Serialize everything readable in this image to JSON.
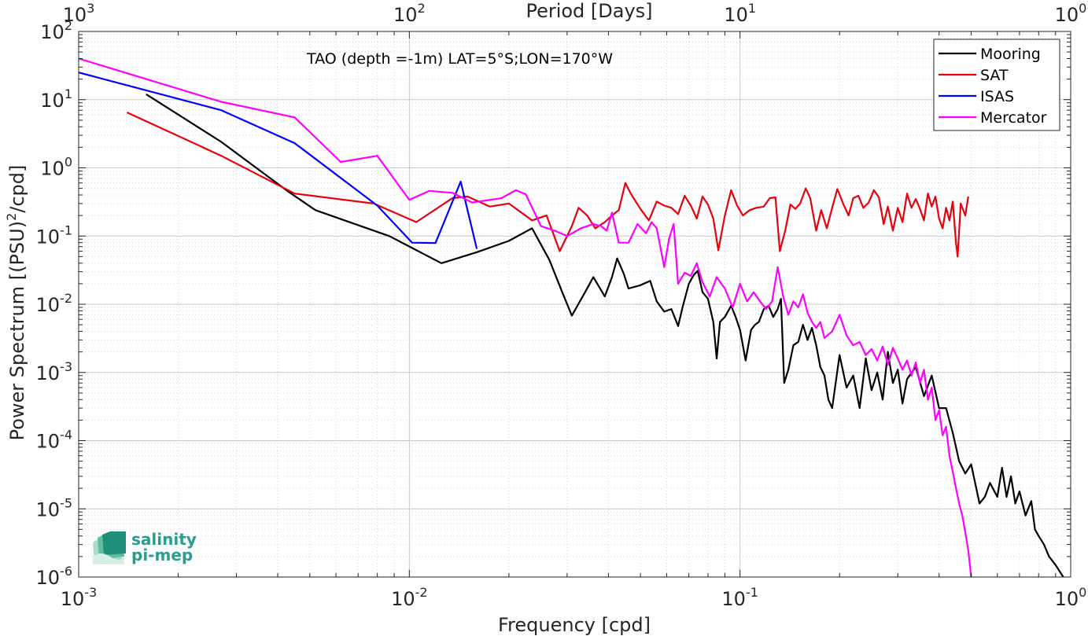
{
  "chart_data": {
    "type": "line",
    "title": "TAO (depth =-1m) LAT=5°S;LON=170°W",
    "xlabel": "Frequency [cpd]",
    "ylabel_parts": [
      "Power Spectrum [(PSU)",
      "2",
      "/cpd]"
    ],
    "x2label": "Period [Days]",
    "x_scale": "log",
    "y_scale": "log",
    "xlim": [
      0.001,
      1
    ],
    "ylim": [
      1e-06,
      100
    ],
    "grid": true,
    "legend_position": "top-right",
    "x_ticks": [
      {
        "base": "10",
        "exp": "-3",
        "value": 0.001
      },
      {
        "base": "10",
        "exp": "-2",
        "value": 0.01
      },
      {
        "base": "10",
        "exp": "-1",
        "value": 0.1
      },
      {
        "base": "10",
        "exp": "0",
        "value": 1
      }
    ],
    "x2_ticks": [
      {
        "base": "10",
        "exp": "3",
        "value": 0.001
      },
      {
        "base": "10",
        "exp": "2",
        "value": 0.01
      },
      {
        "base": "10",
        "exp": "1",
        "value": 0.1
      },
      {
        "base": "10",
        "exp": "0",
        "value": 1
      }
    ],
    "y_ticks": [
      {
        "base": "10",
        "exp": "2",
        "value": 100
      },
      {
        "base": "10",
        "exp": "1",
        "value": 10
      },
      {
        "base": "10",
        "exp": "0",
        "value": 1
      },
      {
        "base": "10",
        "exp": "-1",
        "value": 0.1
      },
      {
        "base": "10",
        "exp": "-2",
        "value": 0.01
      },
      {
        "base": "10",
        "exp": "-3",
        "value": 0.001
      },
      {
        "base": "10",
        "exp": "-4",
        "value": 0.0001
      },
      {
        "base": "10",
        "exp": "-5",
        "value": 1e-05
      },
      {
        "base": "10",
        "exp": "-6",
        "value": 1e-06
      }
    ],
    "series": [
      {
        "name": "Mooring",
        "color": "#000000",
        "points": [
          [
            0.0016,
            12
          ],
          [
            0.0027,
            2.4
          ],
          [
            0.0043,
            0.45
          ],
          [
            0.0052,
            0.24
          ],
          [
            0.0087,
            0.1
          ],
          [
            0.0125,
            0.04
          ],
          [
            0.016,
            0.058
          ],
          [
            0.02,
            0.085
          ],
          [
            0.0235,
            0.13
          ],
          [
            0.0265,
            0.045
          ],
          [
            0.029,
            0.015
          ],
          [
            0.031,
            0.0068
          ],
          [
            0.034,
            0.015
          ],
          [
            0.036,
            0.025
          ],
          [
            0.039,
            0.013
          ],
          [
            0.041,
            0.025
          ],
          [
            0.0425,
            0.047
          ],
          [
            0.0445,
            0.028
          ],
          [
            0.046,
            0.017
          ],
          [
            0.05,
            0.019
          ],
          [
            0.0535,
            0.022
          ],
          [
            0.056,
            0.011
          ],
          [
            0.059,
            0.0078
          ],
          [
            0.062,
            0.0085
          ],
          [
            0.065,
            0.0048
          ],
          [
            0.067,
            0.009
          ],
          [
            0.07,
            0.02
          ],
          [
            0.0725,
            0.027
          ],
          [
            0.0745,
            0.031
          ],
          [
            0.077,
            0.015
          ],
          [
            0.08,
            0.012
          ],
          [
            0.083,
            0.0055
          ],
          [
            0.085,
            0.0016
          ],
          [
            0.087,
            0.0055
          ],
          [
            0.09,
            0.0065
          ],
          [
            0.094,
            0.0095
          ],
          [
            0.097,
            0.0065
          ],
          [
            0.1,
            0.0042
          ],
          [
            0.104,
            0.0015
          ],
          [
            0.108,
            0.0042
          ],
          [
            0.111,
            0.005
          ],
          [
            0.114,
            0.0055
          ],
          [
            0.118,
            0.0085
          ],
          [
            0.122,
            0.0095
          ],
          [
            0.126,
            0.0065
          ],
          [
            0.13,
            0.0085
          ],
          [
            0.133,
            0.012
          ],
          [
            0.136,
            0.0007
          ],
          [
            0.14,
            0.0011
          ],
          [
            0.145,
            0.0025
          ],
          [
            0.15,
            0.0028
          ],
          [
            0.155,
            0.005
          ],
          [
            0.16,
            0.003
          ],
          [
            0.165,
            0.0045
          ],
          [
            0.17,
            0.0025
          ],
          [
            0.175,
            0.0012
          ],
          [
            0.18,
            0.0009
          ],
          [
            0.185,
            0.0004
          ],
          [
            0.19,
            0.0003
          ],
          [
            0.2,
            0.0018
          ],
          [
            0.21,
            0.0006
          ],
          [
            0.22,
            0.0009
          ],
          [
            0.23,
            0.0003
          ],
          [
            0.24,
            0.0016
          ],
          [
            0.25,
            0.00055
          ],
          [
            0.26,
            0.001
          ],
          [
            0.27,
            0.0004
          ],
          [
            0.28,
            0.002
          ],
          [
            0.29,
            0.0007
          ],
          [
            0.3,
            0.0011
          ],
          [
            0.31,
            0.00035
          ],
          [
            0.32,
            0.0008
          ],
          [
            0.34,
            0.0012
          ],
          [
            0.36,
            0.00045
          ],
          [
            0.38,
            0.0009
          ],
          [
            0.4,
            0.0003
          ],
          [
            0.42,
            0.0003
          ],
          [
            0.44,
            0.00013
          ],
          [
            0.46,
            5e-05
          ],
          [
            0.48,
            3.3e-05
          ],
          [
            0.5,
            4.5e-05
          ],
          [
            0.53,
            1.2e-05
          ],
          [
            0.55,
            1.5e-05
          ],
          [
            0.57,
            2.4e-05
          ],
          [
            0.6,
            1.5e-05
          ],
          [
            0.62,
            4e-05
          ],
          [
            0.64,
            1.5e-05
          ],
          [
            0.66,
            3e-05
          ],
          [
            0.68,
            1.2e-05
          ],
          [
            0.7,
            1.8e-05
          ],
          [
            0.73,
            8e-06
          ],
          [
            0.76,
            1.3e-05
          ],
          [
            0.78,
            5e-06
          ],
          [
            0.8,
            4e-06
          ],
          [
            0.83,
            3e-06
          ],
          [
            0.86,
            2e-06
          ],
          [
            0.9,
            1.5e-06
          ],
          [
            0.95,
            1e-06
          ]
        ]
      },
      {
        "name": "SAT",
        "color": "#e8000b",
        "points": [
          [
            0.0014,
            6.5
          ],
          [
            0.0027,
            1.5
          ],
          [
            0.0045,
            0.42
          ],
          [
            0.0078,
            0.3
          ],
          [
            0.0105,
            0.16
          ],
          [
            0.0135,
            0.36
          ],
          [
            0.015,
            0.38
          ],
          [
            0.0175,
            0.27
          ],
          [
            0.02,
            0.3
          ],
          [
            0.0235,
            0.17
          ],
          [
            0.026,
            0.2
          ],
          [
            0.0285,
            0.06
          ],
          [
            0.031,
            0.14
          ],
          [
            0.0325,
            0.26
          ],
          [
            0.0345,
            0.2
          ],
          [
            0.0365,
            0.13
          ],
          [
            0.039,
            0.16
          ],
          [
            0.041,
            0.2
          ],
          [
            0.043,
            0.24
          ],
          [
            0.045,
            0.6
          ],
          [
            0.047,
            0.4
          ],
          [
            0.05,
            0.25
          ],
          [
            0.053,
            0.17
          ],
          [
            0.056,
            0.32
          ],
          [
            0.059,
            0.28
          ],
          [
            0.062,
            0.26
          ],
          [
            0.065,
            0.21
          ],
          [
            0.068,
            0.39
          ],
          [
            0.071,
            0.28
          ],
          [
            0.074,
            0.18
          ],
          [
            0.077,
            0.38
          ],
          [
            0.08,
            0.29
          ],
          [
            0.083,
            0.18
          ],
          [
            0.086,
            0.062
          ],
          [
            0.09,
            0.2
          ],
          [
            0.094,
            0.47
          ],
          [
            0.098,
            0.28
          ],
          [
            0.102,
            0.2
          ],
          [
            0.107,
            0.24
          ],
          [
            0.112,
            0.26
          ],
          [
            0.118,
            0.27
          ],
          [
            0.123,
            0.36
          ],
          [
            0.128,
            0.37
          ],
          [
            0.132,
            0.06
          ],
          [
            0.137,
            0.12
          ],
          [
            0.142,
            0.29
          ],
          [
            0.147,
            0.25
          ],
          [
            0.152,
            0.3
          ],
          [
            0.158,
            0.5
          ],
          [
            0.163,
            0.36
          ],
          [
            0.17,
            0.12
          ],
          [
            0.176,
            0.24
          ],
          [
            0.183,
            0.13
          ],
          [
            0.19,
            0.26
          ],
          [
            0.197,
            0.49
          ],
          [
            0.205,
            0.3
          ],
          [
            0.213,
            0.2
          ],
          [
            0.22,
            0.36
          ],
          [
            0.228,
            0.39
          ],
          [
            0.236,
            0.26
          ],
          [
            0.245,
            0.31
          ],
          [
            0.254,
            0.47
          ],
          [
            0.263,
            0.37
          ],
          [
            0.272,
            0.15
          ],
          [
            0.28,
            0.27
          ],
          [
            0.29,
            0.12
          ],
          [
            0.3,
            0.26
          ],
          [
            0.31,
            0.16
          ],
          [
            0.32,
            0.42
          ],
          [
            0.33,
            0.26
          ],
          [
            0.34,
            0.35
          ],
          [
            0.35,
            0.25
          ],
          [
            0.36,
            0.17
          ],
          [
            0.37,
            0.42
          ],
          [
            0.38,
            0.27
          ],
          [
            0.39,
            0.38
          ],
          [
            0.4,
            0.18
          ],
          [
            0.41,
            0.13
          ],
          [
            0.42,
            0.26
          ],
          [
            0.43,
            0.17
          ],
          [
            0.44,
            0.32
          ],
          [
            0.45,
            0.08
          ],
          [
            0.455,
            0.05
          ],
          [
            0.465,
            0.3
          ],
          [
            0.48,
            0.2
          ],
          [
            0.49,
            0.38
          ]
        ]
      },
      {
        "name": "ISAS",
        "color": "#0000ff",
        "points": [
          [
            0.001,
            25
          ],
          [
            0.0027,
            7
          ],
          [
            0.0045,
            2.3
          ],
          [
            0.008,
            0.28
          ],
          [
            0.0102,
            0.08
          ],
          [
            0.012,
            0.079
          ],
          [
            0.0143,
            0.63
          ],
          [
            0.016,
            0.065
          ]
        ]
      },
      {
        "name": "Mercator",
        "color": "#ff00ff",
        "points": [
          [
            0.001,
            40
          ],
          [
            0.0027,
            9.3
          ],
          [
            0.0045,
            5.5
          ],
          [
            0.0062,
            1.22
          ],
          [
            0.008,
            1.5
          ],
          [
            0.01,
            0.34
          ],
          [
            0.0115,
            0.46
          ],
          [
            0.0135,
            0.43
          ],
          [
            0.0155,
            0.31
          ],
          [
            0.019,
            0.36
          ],
          [
            0.021,
            0.47
          ],
          [
            0.0225,
            0.41
          ],
          [
            0.025,
            0.14
          ],
          [
            0.0275,
            0.12
          ],
          [
            0.03,
            0.1
          ],
          [
            0.033,
            0.13
          ],
          [
            0.036,
            0.15
          ],
          [
            0.038,
            0.14
          ],
          [
            0.0395,
            0.12
          ],
          [
            0.041,
            0.22
          ],
          [
            0.043,
            0.08
          ],
          [
            0.046,
            0.08
          ],
          [
            0.049,
            0.15
          ],
          [
            0.052,
            0.11
          ],
          [
            0.054,
            0.16
          ],
          [
            0.056,
            0.13
          ],
          [
            0.059,
            0.035
          ],
          [
            0.061,
            0.09
          ],
          [
            0.063,
            0.15
          ],
          [
            0.065,
            0.02
          ],
          [
            0.068,
            0.029
          ],
          [
            0.071,
            0.026
          ],
          [
            0.074,
            0.04
          ],
          [
            0.077,
            0.021
          ],
          [
            0.081,
            0.013
          ],
          [
            0.085,
            0.025
          ],
          [
            0.09,
            0.017
          ],
          [
            0.095,
            0.009
          ],
          [
            0.1,
            0.02
          ],
          [
            0.105,
            0.011
          ],
          [
            0.11,
            0.015
          ],
          [
            0.115,
            0.011
          ],
          [
            0.12,
            0.0085
          ],
          [
            0.125,
            0.011
          ],
          [
            0.13,
            0.035
          ],
          [
            0.135,
            0.013
          ],
          [
            0.14,
            0.007
          ],
          [
            0.145,
            0.011
          ],
          [
            0.15,
            0.009
          ],
          [
            0.155,
            0.014
          ],
          [
            0.16,
            0.0075
          ],
          [
            0.165,
            0.0055
          ],
          [
            0.17,
            0.0045
          ],
          [
            0.175,
            0.0055
          ],
          [
            0.18,
            0.0032
          ],
          [
            0.19,
            0.004
          ],
          [
            0.2,
            0.007
          ],
          [
            0.21,
            0.0035
          ],
          [
            0.22,
            0.0025
          ],
          [
            0.23,
            0.0028
          ],
          [
            0.24,
            0.0018
          ],
          [
            0.25,
            0.0022
          ],
          [
            0.26,
            0.0015
          ],
          [
            0.27,
            0.0024
          ],
          [
            0.28,
            0.0013
          ],
          [
            0.29,
            0.0023
          ],
          [
            0.3,
            0.0016
          ],
          [
            0.31,
            0.0011
          ],
          [
            0.32,
            0.0015
          ],
          [
            0.33,
            0.0009
          ],
          [
            0.34,
            0.0014
          ],
          [
            0.35,
            0.0007
          ],
          [
            0.36,
            0.0011
          ],
          [
            0.37,
            0.0004
          ],
          [
            0.38,
            0.0006
          ],
          [
            0.39,
            0.0002
          ],
          [
            0.4,
            0.00028
          ],
          [
            0.41,
            0.00012
          ],
          [
            0.42,
            0.00016
          ],
          [
            0.43,
            6e-05
          ],
          [
            0.44,
            3.5e-05
          ],
          [
            0.45,
            2e-05
          ],
          [
            0.46,
            1.2e-05
          ],
          [
            0.47,
            8e-06
          ],
          [
            0.48,
            4.5e-06
          ],
          [
            0.49,
            2.5e-06
          ],
          [
            0.5,
            1e-06
          ]
        ]
      }
    ]
  },
  "logo": {
    "line1": "salinity",
    "line2": "pi-mep",
    "color": "#2a9d8f"
  }
}
